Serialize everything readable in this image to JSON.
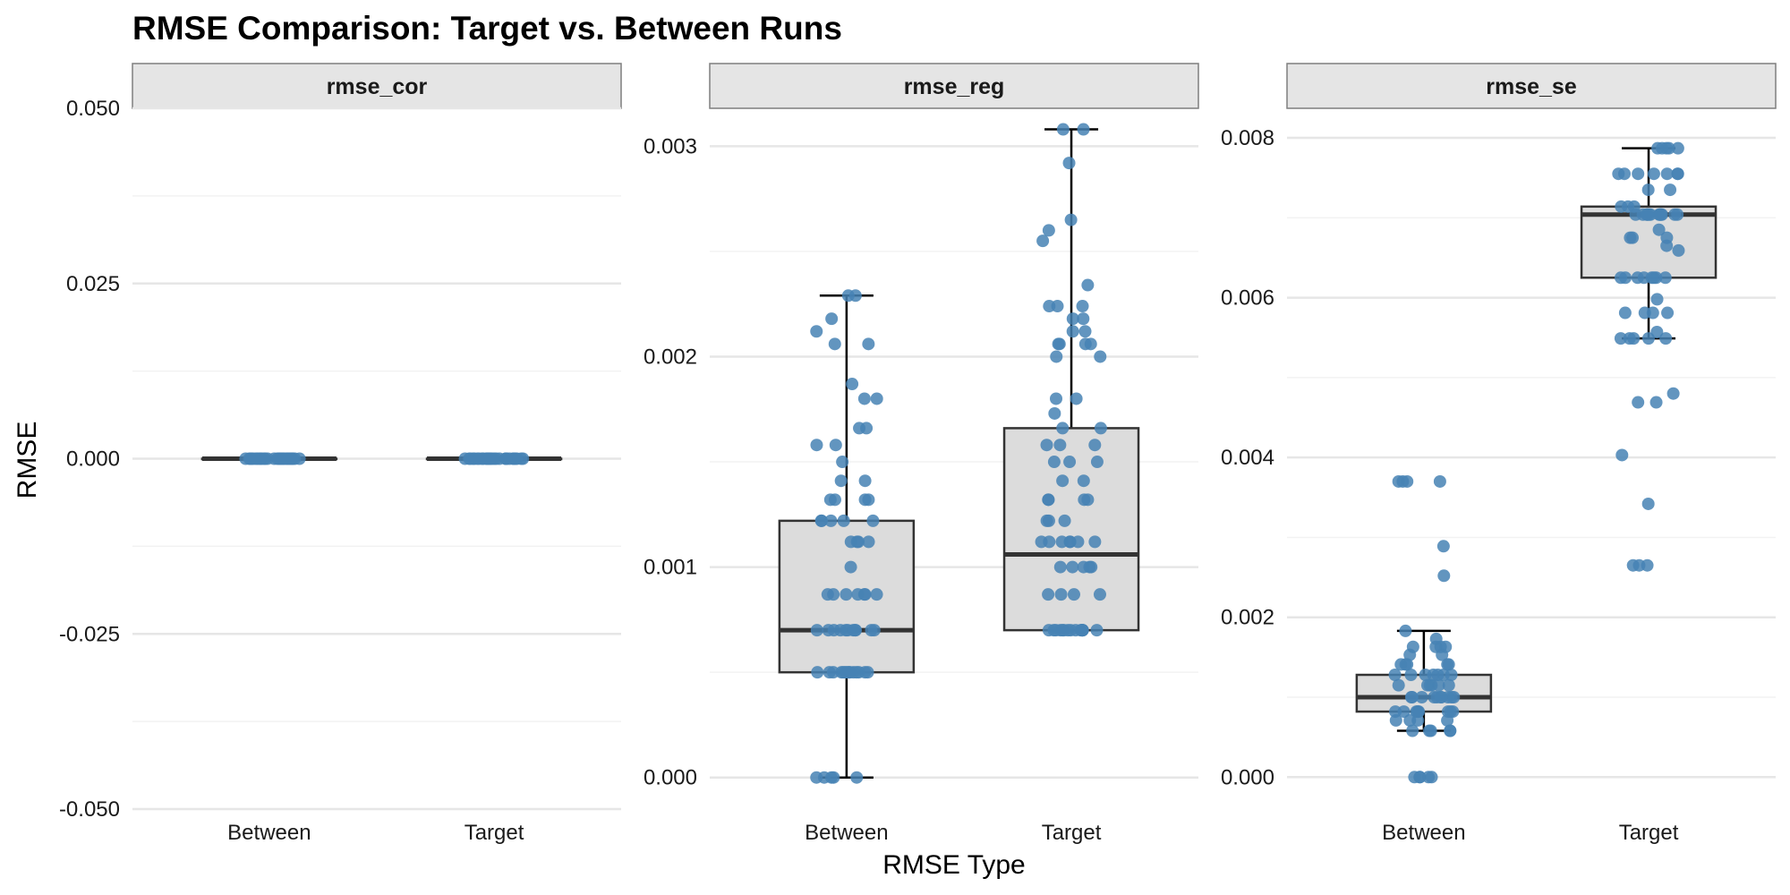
{
  "chart_data": {
    "type": "box",
    "title": "RMSE Comparison: Target vs. Between Runs",
    "xlabel": "RMSE Type",
    "ylabel": "RMSE",
    "categories": [
      "Between",
      "Target"
    ],
    "grid": true,
    "legend": "none",
    "colors": {
      "point": "#4682b4",
      "box_fill": "#dcdcdc",
      "box_line": "#333333",
      "whisker": "#000000",
      "strip_fill": "#e5e5e5",
      "strip_border": "#7f7f7f",
      "grid_major": "#e6e6e6",
      "grid_minor": "#f2f2f2"
    },
    "panels": [
      {
        "name": "rmse_cor",
        "ylim": [
          -0.05,
          0.05
        ],
        "ticks": [
          -0.05,
          -0.025,
          0,
          0.025,
          0.05
        ],
        "tick_labels": [
          "-0.050",
          "-0.025",
          "0.000",
          "0.025",
          "0.050"
        ],
        "boxes": {
          "Between": {
            "min": 0,
            "q1": 0,
            "median": 0,
            "q3": 0,
            "max": 0
          },
          "Target": {
            "min": 0,
            "q1": 0,
            "median": 0,
            "q3": 0,
            "max": 0
          }
        },
        "points": {
          "Between": [
            0,
            0,
            0,
            0,
            0,
            0,
            0,
            0,
            0,
            0,
            0,
            0,
            0,
            0,
            0,
            0,
            0,
            0,
            0,
            0,
            0,
            0,
            0,
            0,
            0,
            0,
            0,
            0,
            0,
            0
          ],
          "Target": [
            0,
            0,
            0,
            0,
            0,
            0,
            0,
            0,
            0,
            0,
            0,
            0,
            0,
            0,
            0,
            0,
            0,
            0,
            0,
            0,
            0,
            0,
            0,
            0,
            0,
            0,
            0,
            0,
            0,
            0
          ]
        }
      },
      {
        "name": "rmse_reg",
        "ylim": [
          -0.00015,
          0.00318
        ],
        "ticks": [
          0,
          0.001,
          0.002,
          0.003
        ],
        "tick_labels": [
          "0.000",
          "0.001",
          "0.002",
          "0.003"
        ],
        "boxes": {
          "Between": {
            "min": 0,
            "q1": 0.0005,
            "median": 0.0007,
            "q3": 0.00122,
            "max": 0.00229
          },
          "Target": {
            "min": 0.0007,
            "q1": 0.0007,
            "median": 0.00106,
            "q3": 0.00166,
            "max": 0.00308
          }
        },
        "points": {
          "Between": [
            0,
            0,
            0,
            0,
            0,
            0.0005,
            0.0005,
            0.0005,
            0.0005,
            0.0005,
            0.0005,
            0.0005,
            0.0005,
            0.0005,
            0.0005,
            0.0005,
            0.0005,
            0.0005,
            0.0005,
            0.0007,
            0.0007,
            0.0007,
            0.0007,
            0.0007,
            0.0007,
            0.0007,
            0.0007,
            0.0007,
            0.0007,
            0.0007,
            0.00087,
            0.00087,
            0.00087,
            0.00087,
            0.00087,
            0.00087,
            0.00087,
            0.001,
            0.00112,
            0.00112,
            0.00112,
            0.00112,
            0.00122,
            0.00122,
            0.00122,
            0.00122,
            0.00122,
            0.00132,
            0.00132,
            0.00132,
            0.00132,
            0.00141,
            0.00141,
            0.0015,
            0.00158,
            0.00158,
            0.00166,
            0.00166,
            0.0018,
            0.0018,
            0.00187,
            0.00206,
            0.00206,
            0.00212,
            0.00218,
            0.00229,
            0.00229
          ],
          "Target": [
            0.0007,
            0.0007,
            0.0007,
            0.0007,
            0.0007,
            0.0007,
            0.0007,
            0.0007,
            0.0007,
            0.0007,
            0.0007,
            0.0007,
            0.0007,
            0.0007,
            0.0007,
            0.0007,
            0.00087,
            0.00087,
            0.00087,
            0.00087,
            0.001,
            0.001,
            0.001,
            0.001,
            0.001,
            0.00112,
            0.00112,
            0.00112,
            0.00112,
            0.00112,
            0.00112,
            0.00112,
            0.00122,
            0.00122,
            0.00122,
            0.00132,
            0.00132,
            0.00132,
            0.00132,
            0.00141,
            0.00141,
            0.0015,
            0.0015,
            0.0015,
            0.00158,
            0.00158,
            0.00158,
            0.00166,
            0.00166,
            0.00173,
            0.0018,
            0.0018,
            0.002,
            0.002,
            0.00206,
            0.00206,
            0.00206,
            0.00206,
            0.00212,
            0.00212,
            0.00218,
            0.00218,
            0.00224,
            0.00224,
            0.00224,
            0.00234,
            0.00255,
            0.0026,
            0.00265,
            0.00292,
            0.00308,
            0.00308
          ]
        }
      },
      {
        "name": "rmse_se",
        "ylim": [
          -0.0004,
          0.00837
        ],
        "ticks": [
          0,
          0.002,
          0.004,
          0.006,
          0.008
        ],
        "tick_labels": [
          "0.000",
          "0.002",
          "0.004",
          "0.006",
          "0.008"
        ],
        "boxes": {
          "Between": {
            "min": 0.00058,
            "q1": 0.00082,
            "median": 0.001,
            "q3": 0.00128,
            "max": 0.00183
          },
          "Target": {
            "min": 0.00549,
            "q1": 0.00625,
            "median": 0.00704,
            "q3": 0.00714,
            "max": 0.00787
          }
        },
        "points": {
          "Between": [
            0,
            0,
            0,
            0,
            0,
            0.00058,
            0.00058,
            0.00058,
            0.00058,
            0.00058,
            0.00071,
            0.00071,
            0.00071,
            0.00071,
            0.00082,
            0.00082,
            0.00082,
            0.00082,
            0.00082,
            0.00082,
            0.00082,
            0.00082,
            0.00082,
            0.001,
            0.001,
            0.001,
            0.001,
            0.001,
            0.001,
            0.001,
            0.001,
            0.001,
            0.001,
            0.00115,
            0.00115,
            0.00115,
            0.00115,
            0.00115,
            0.00115,
            0.00128,
            0.00128,
            0.00128,
            0.00128,
            0.00128,
            0.00128,
            0.00128,
            0.00141,
            0.00141,
            0.00141,
            0.00141,
            0.00141,
            0.00153,
            0.00153,
            0.00163,
            0.00163,
            0.00163,
            0.00163,
            0.00173,
            0.00183,
            0.00252,
            0.00289,
            0.0037,
            0.0037,
            0.0037,
            0.0037
          ],
          "Target": [
            0.00265,
            0.00265,
            0.00265,
            0.00342,
            0.00403,
            0.00469,
            0.00469,
            0.0048,
            0.00549,
            0.00549,
            0.00549,
            0.00549,
            0.00549,
            0.00557,
            0.00581,
            0.00581,
            0.00581,
            0.00581,
            0.00598,
            0.00625,
            0.00625,
            0.00625,
            0.00625,
            0.00625,
            0.00625,
            0.00625,
            0.00625,
            0.00659,
            0.00665,
            0.00675,
            0.00675,
            0.00675,
            0.00685,
            0.00704,
            0.00704,
            0.00704,
            0.00704,
            0.00704,
            0.00704,
            0.00704,
            0.00704,
            0.00704,
            0.00704,
            0.00704,
            0.00704,
            0.00714,
            0.00714,
            0.00714,
            0.00735,
            0.00735,
            0.00755,
            0.00755,
            0.00755,
            0.00755,
            0.00755,
            0.00755,
            0.00755,
            0.00787,
            0.00787,
            0.00787,
            0.00787,
            0.00787
          ]
        }
      }
    ]
  }
}
